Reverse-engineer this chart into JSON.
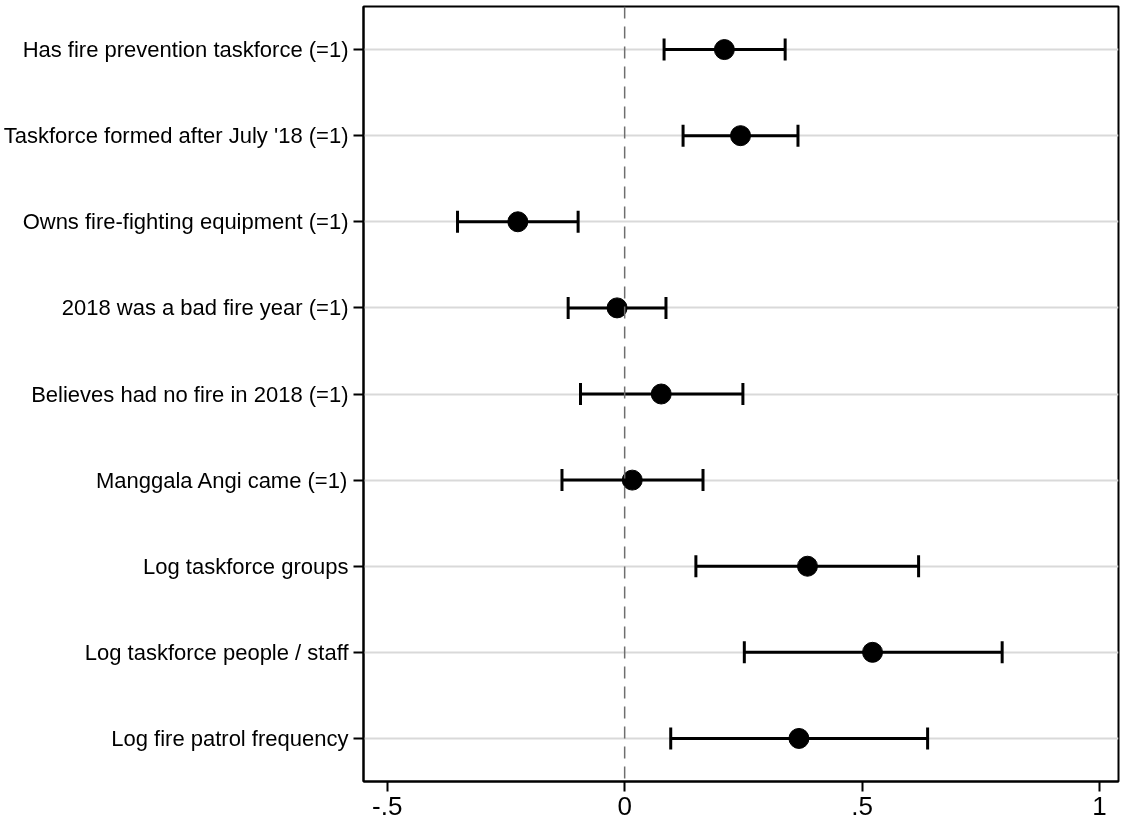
{
  "chart_data": {
    "type": "scatter",
    "orientation": "horizontal",
    "categories": [
      "Has fire prevention taskforce (=1)",
      "Taskforce formed after July '18 (=1)",
      "Owns fire-fighting equipment (=1)",
      "2018 was a bad fire year (=1)",
      "Believes had no fire in 2018 (=1)",
      "Manggala Angi came (=1)",
      "Log taskforce groups",
      "Log taskforce people / staff",
      "Log fire patrol frequency"
    ],
    "values": [
      0.21,
      0.244,
      -0.225,
      -0.016,
      0.077,
      0.016,
      0.385,
      0.522,
      0.367
    ],
    "errors": [
      [
        0.083,
        0.338
      ],
      [
        0.123,
        0.365
      ],
      [
        -0.352,
        -0.098
      ],
      [
        -0.119,
        0.087
      ],
      [
        -0.093,
        0.249
      ],
      [
        -0.132,
        0.165
      ],
      [
        0.15,
        0.619
      ],
      [
        0.252,
        0.795
      ],
      [
        0.097,
        0.638
      ]
    ],
    "color": "#000000",
    "marker": "circle",
    "xlim": [
      -0.55,
      1.04
    ],
    "xticks": [
      {
        "value": -0.5,
        "label": "-.5"
      },
      0,
      {
        "value": 0.5,
        "label": ".5"
      },
      1
    ],
    "ref_lines": [
      {
        "axis": "x",
        "value": 0,
        "color": "#6e6e6e",
        "line_style": "dashed"
      }
    ],
    "grid": "y"
  }
}
